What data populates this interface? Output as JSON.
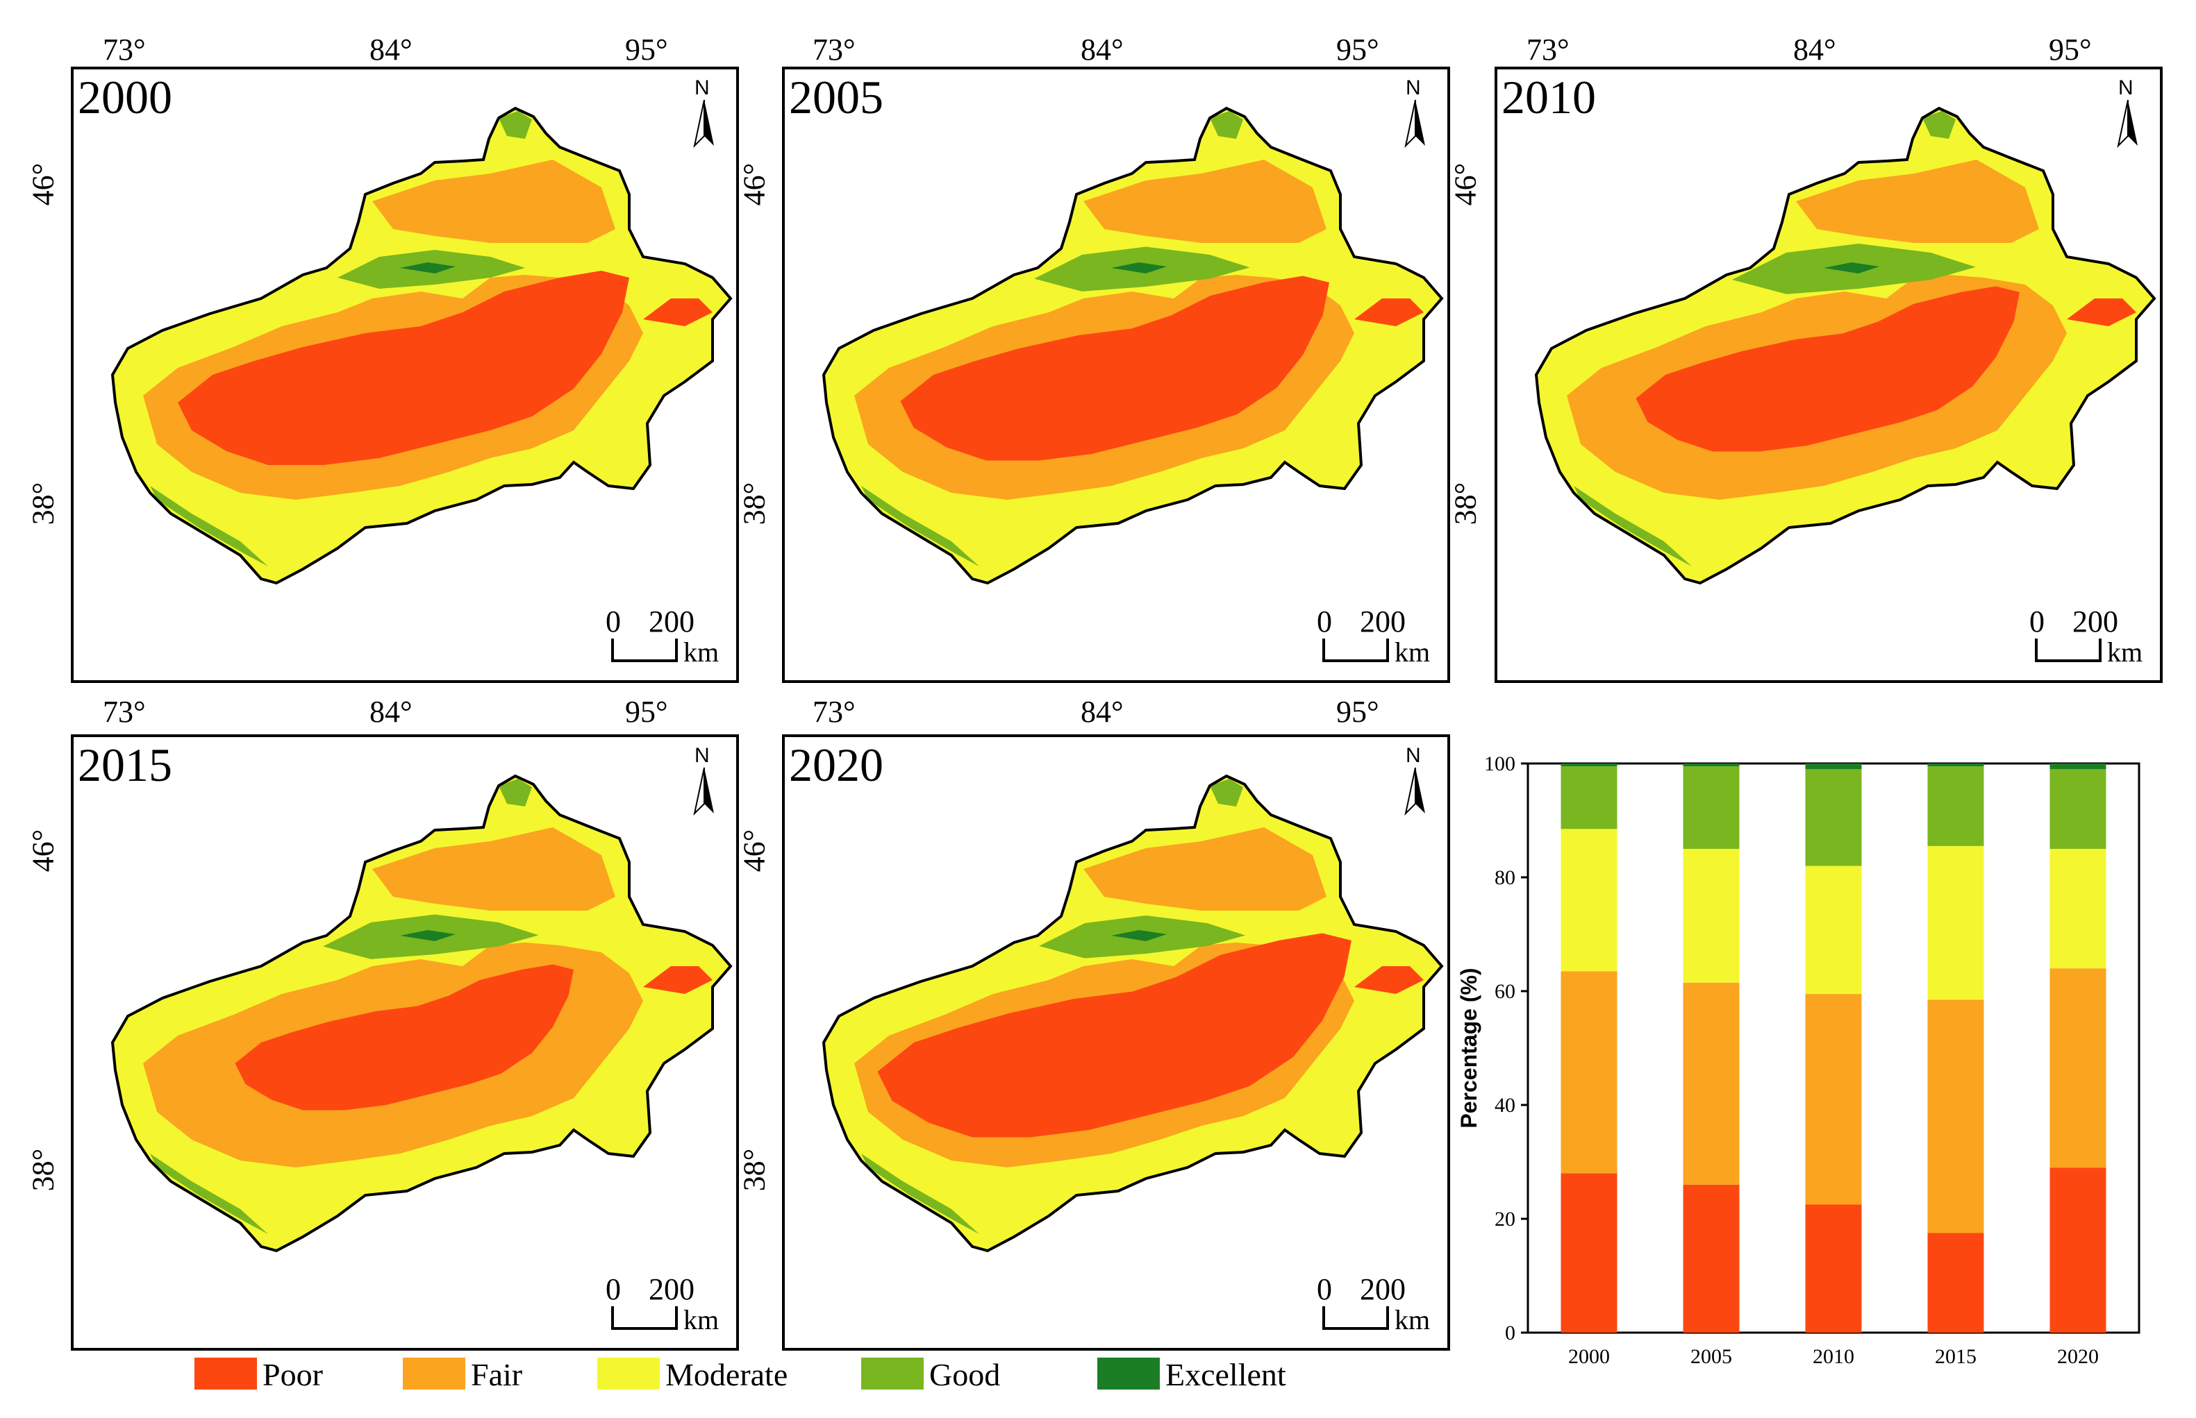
{
  "legend": {
    "items": [
      {
        "label": "Poor",
        "color": "#fd4711"
      },
      {
        "label": "Fair",
        "color": "#fba41f"
      },
      {
        "label": "Moderate",
        "color": "#f4f72f"
      },
      {
        "label": "Good",
        "color": "#7ab61f"
      },
      {
        "label": "Excellent",
        "color": "#1b7e24"
      }
    ]
  },
  "map_common": {
    "north_label": "N",
    "lon_ticks": [
      "73°",
      "84°",
      "95°"
    ],
    "lat_ticks": [
      "46°",
      "38°"
    ],
    "scale_zero": "0",
    "scale_value": "200",
    "scale_unit": "km"
  },
  "maps": [
    {
      "year": "2000"
    },
    {
      "year": "2005"
    },
    {
      "year": "2010"
    },
    {
      "year": "2015"
    },
    {
      "year": "2020"
    }
  ],
  "chart_data": {
    "type": "bar",
    "stacked": true,
    "categories": [
      "2000",
      "2005",
      "2010",
      "2015",
      "2020"
    ],
    "ylabel": "Percentage (%)",
    "xlabel": "",
    "ylim": [
      0,
      100
    ],
    "yticks": [
      "0",
      "20",
      "40",
      "60",
      "80",
      "100"
    ],
    "series": [
      {
        "name": "Poor",
        "color": "#fd4711",
        "values": [
          28,
          26,
          22.5,
          17.5,
          29
        ]
      },
      {
        "name": "Fair",
        "color": "#fba41f",
        "values": [
          35.5,
          35.5,
          37,
          41,
          35
        ]
      },
      {
        "name": "Moderate",
        "color": "#f4f72f",
        "values": [
          25,
          23.5,
          22.5,
          27,
          21
        ]
      },
      {
        "name": "Good",
        "color": "#7ab61f",
        "values": [
          11,
          14.5,
          17,
          14,
          14
        ]
      },
      {
        "name": "Excellent",
        "color": "#1b7e24",
        "values": [
          0.5,
          0.5,
          1,
          0.5,
          1
        ]
      }
    ]
  }
}
